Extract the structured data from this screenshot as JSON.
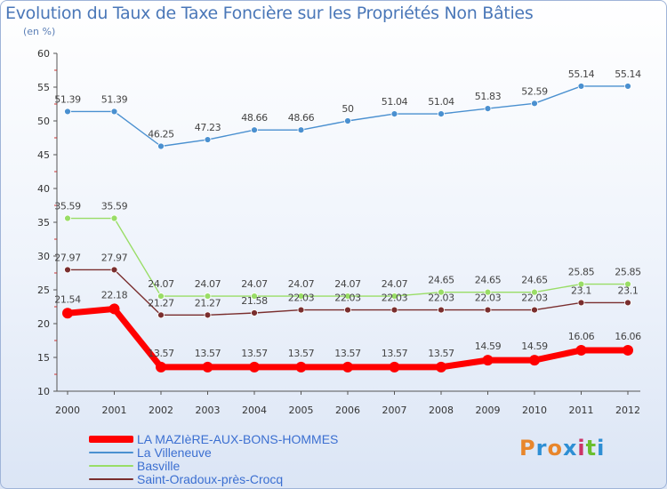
{
  "header": {
    "title": "Evolution du Taux de Taxe Foncière sur les Propriétés Non Bâties",
    "subtitle": "(en %)"
  },
  "brand": {
    "text": "Proxiti",
    "colors": [
      "#e8862c",
      "#2e8fd4",
      "#e8862c",
      "#2e8fd4",
      "#cc3366",
      "#6abf2e",
      "#2e8fd4"
    ]
  },
  "chart_data": {
    "type": "line",
    "title": "Evolution du Taux de Taxe Foncière sur les Propriétés Non Bâties",
    "ylabel": "(en %)",
    "xlabel": "",
    "ylim": [
      10,
      60
    ],
    "yticks": [
      10,
      15,
      20,
      25,
      30,
      35,
      40,
      45,
      50,
      55,
      60
    ],
    "categories": [
      "2000",
      "2001",
      "2002",
      "2003",
      "2004",
      "2005",
      "2006",
      "2007",
      "2008",
      "2009",
      "2010",
      "2011",
      "2012"
    ],
    "grid": false,
    "legend_position": "bottom-left",
    "series": [
      {
        "name": "LA MAZIèRE-AUX-BONS-HOMMES",
        "color": "#ff0000",
        "thick": true,
        "values": [
          21.54,
          22.18,
          13.57,
          13.57,
          13.57,
          13.57,
          13.57,
          13.57,
          13.57,
          14.59,
          14.59,
          16.06,
          16.06
        ],
        "labels": [
          "21.54",
          "22.18",
          "13.57",
          "13.57",
          "13.57",
          "13.57",
          "13.57",
          "13.57",
          "13.57",
          "14.59",
          "14.59",
          "16.06",
          "16.06"
        ]
      },
      {
        "name": "La Villeneuve",
        "color": "#4a90d0",
        "thick": false,
        "values": [
          51.39,
          51.39,
          46.25,
          47.23,
          48.66,
          48.66,
          50,
          51.04,
          51.04,
          51.83,
          52.59,
          55.14,
          55.14
        ],
        "labels": [
          "51.39",
          "51.39",
          "46.25",
          "47.23",
          "48.66",
          "48.66",
          "50",
          "51.04",
          "51.04",
          "51.83",
          "52.59",
          "55.14",
          "55.14"
        ]
      },
      {
        "name": "Basville",
        "color": "#99dd66",
        "thick": false,
        "values": [
          35.59,
          35.59,
          24.07,
          24.07,
          24.07,
          24.07,
          24.07,
          24.07,
          24.65,
          24.65,
          24.65,
          25.85,
          25.85
        ],
        "labels": [
          "35.59",
          "35.59",
          "24.07",
          "24.07",
          "24.07",
          "24.07",
          "24.07",
          "24.07",
          "24.65",
          "24.65",
          "24.65",
          "25.85",
          "25.85"
        ]
      },
      {
        "name": "Saint-Oradoux-près-Crocq",
        "color": "#7a2e2e",
        "thick": false,
        "values": [
          27.97,
          27.97,
          21.27,
          21.27,
          21.58,
          22.03,
          22.03,
          22.03,
          22.03,
          22.03,
          22.03,
          23.1,
          23.1
        ],
        "labels": [
          "27.97",
          "27.97",
          "21.27",
          "21.27",
          "21.58",
          "22.03",
          "22.03",
          "22.03",
          "22.03",
          "22.03",
          "22.03",
          "23.1",
          "23.1"
        ]
      }
    ]
  }
}
